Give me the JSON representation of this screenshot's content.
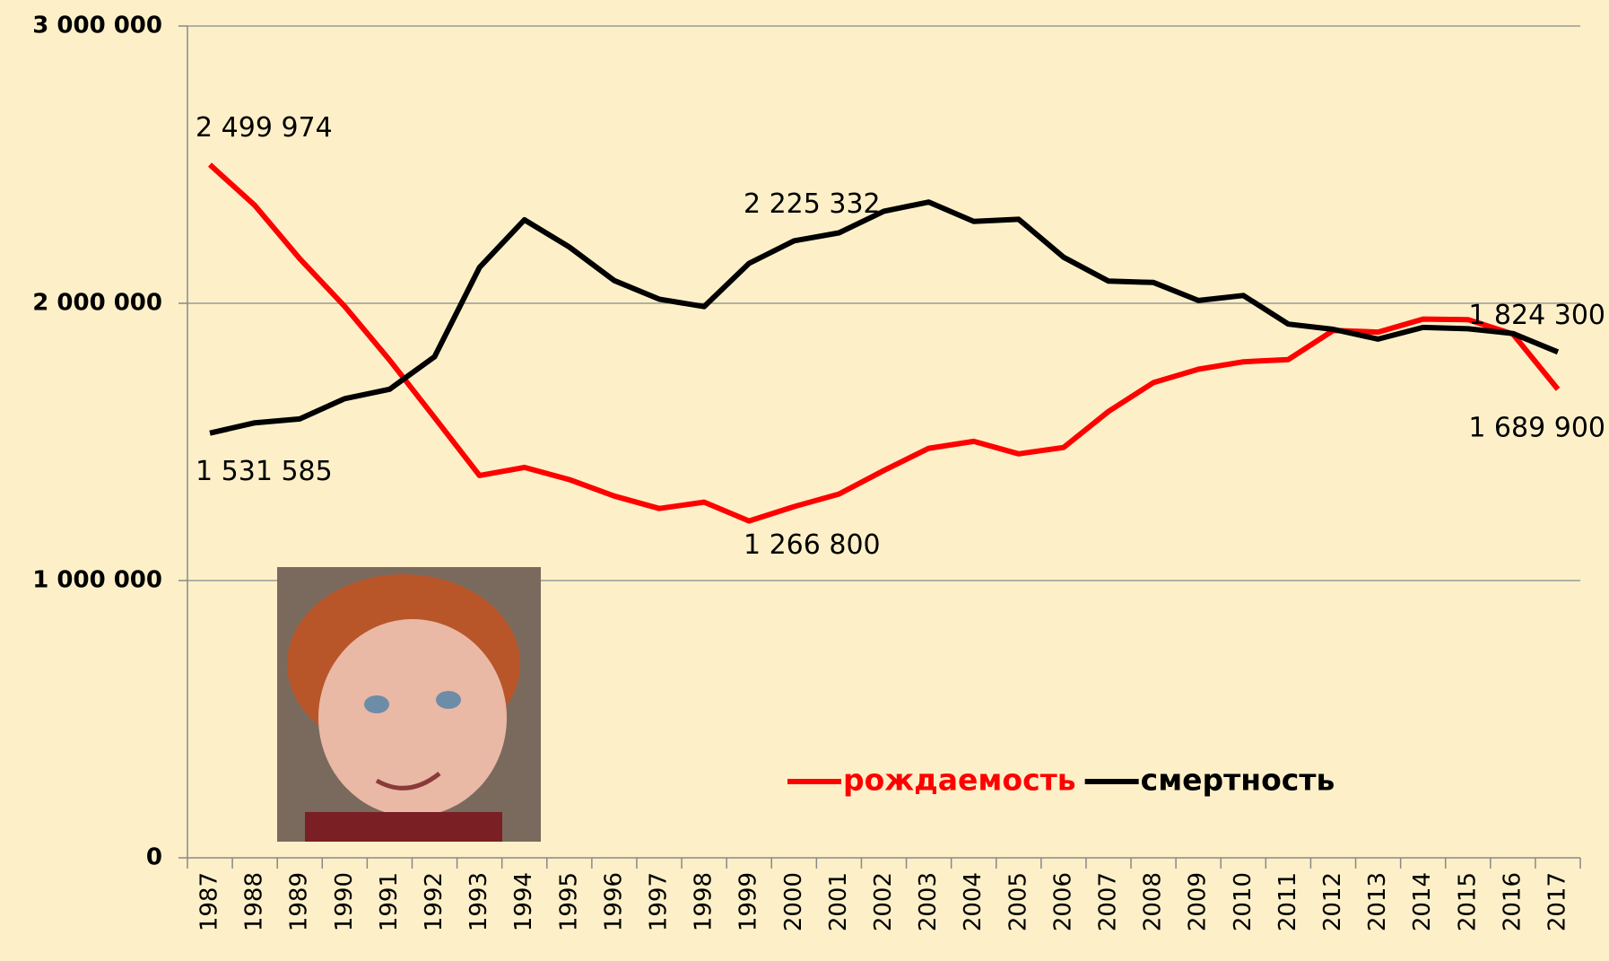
{
  "chart_data": {
    "type": "line",
    "categories": [
      "1987",
      "1988",
      "1989",
      "1990",
      "1991",
      "1992",
      "1993",
      "1994",
      "1995",
      "1996",
      "1997",
      "1998",
      "1999",
      "2000",
      "2001",
      "2002",
      "2003",
      "2004",
      "2005",
      "2006",
      "2007",
      "2008",
      "2009",
      "2010",
      "2011",
      "2012",
      "2013",
      "2014",
      "2015",
      "2016",
      "2017"
    ],
    "series": [
      {
        "name": "рождаемость",
        "color": "#ff0000",
        "values": [
          2499974,
          2353000,
          2161000,
          1989000,
          1795000,
          1588000,
          1379000,
          1408000,
          1364000,
          1305000,
          1260000,
          1283000,
          1215000,
          1266800,
          1312000,
          1397000,
          1477000,
          1502000,
          1457000,
          1480000,
          1610000,
          1714000,
          1762000,
          1789000,
          1797000,
          1902000,
          1896000,
          1943000,
          1941000,
          1889000,
          1689900
        ],
        "value_labels": [
          "2 499 974",
          null,
          null,
          null,
          null,
          null,
          null,
          null,
          null,
          null,
          null,
          null,
          null,
          "1 266 800",
          null,
          null,
          null,
          null,
          null,
          null,
          null,
          null,
          null,
          null,
          null,
          null,
          null,
          null,
          null,
          null,
          "1 689 900"
        ]
      },
      {
        "name": "смертность",
        "color": "#000000",
        "values": [
          1531585,
          1569000,
          1583000,
          1656000,
          1690000,
          1807000,
          2129000,
          2301000,
          2203000,
          2082000,
          2015000,
          1988000,
          2144000,
          2225332,
          2254000,
          2332000,
          2365000,
          2295000,
          2303000,
          2166000,
          2080000,
          2075000,
          2010000,
          2028000,
          1925000,
          1906000,
          1871000,
          1913000,
          1908000,
          1891000,
          1824300
        ],
        "value_labels": [
          "1 531 585",
          null,
          null,
          null,
          null,
          null,
          null,
          null,
          null,
          null,
          null,
          null,
          null,
          "2 225 332",
          null,
          null,
          null,
          null,
          null,
          null,
          null,
          null,
          null,
          null,
          null,
          null,
          null,
          null,
          null,
          null,
          "1 824 300"
        ]
      }
    ],
    "ylim": [
      0,
      3000000
    ],
    "yticks": [
      {
        "value": 0,
        "label": "0"
      },
      {
        "value": 1000000,
        "label": "1 000 000"
      },
      {
        "value": 2000000,
        "label": "2 000 000"
      },
      {
        "value": 3000000,
        "label": "3 000 000"
      }
    ],
    "grid": true,
    "legend": "lower right"
  }
}
